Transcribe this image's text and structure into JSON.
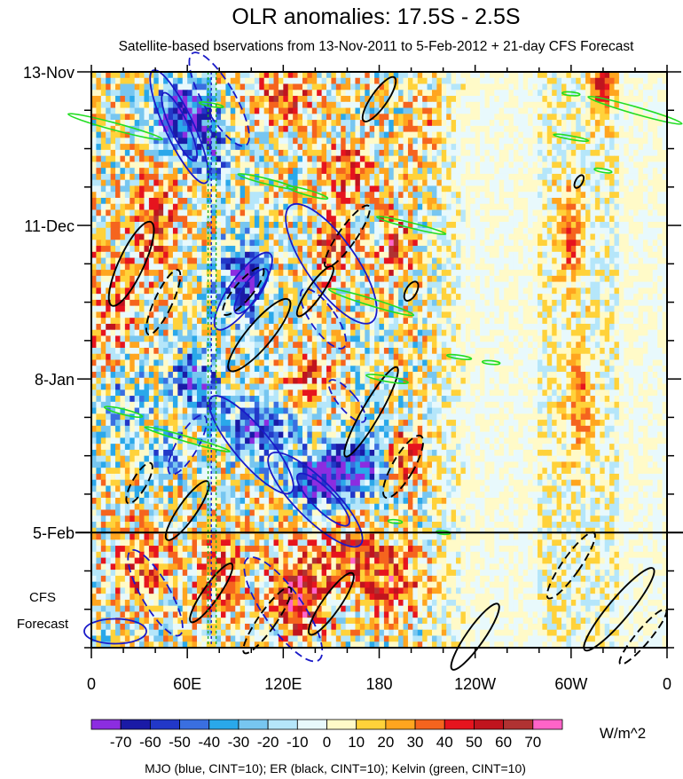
{
  "chart_data": {
    "type": "heatmap",
    "title": "OLR anomalies: 17.5S - 2.5S",
    "subtitle": "Satellite-based bservations from 13-Nov-2011 to 5-Feb-2012 + 21-day CFS Forecast",
    "xlabel": "",
    "ylabel": "",
    "x_ticks": [
      {
        "lon": 0,
        "label": "0"
      },
      {
        "lon": 60,
        "label": "60E"
      },
      {
        "lon": 120,
        "label": "120E"
      },
      {
        "lon": 180,
        "label": "180"
      },
      {
        "lon": 240,
        "label": "120W"
      },
      {
        "lon": 300,
        "label": "60W"
      },
      {
        "lon": 360,
        "label": "0"
      }
    ],
    "xlim": [
      0,
      360
    ],
    "y_ticks": [
      {
        "day": 0,
        "label": "13-Nov"
      },
      {
        "day": 28,
        "label": "11-Dec"
      },
      {
        "day": 56,
        "label": "8-Jan"
      },
      {
        "day": 84,
        "label": "5-Feb"
      }
    ],
    "ylim_days": [
      0,
      105
    ],
    "forecast_start_day": 84,
    "forecast_label_line1": "CFS",
    "forecast_label_line2": "Forecast",
    "colorbar": {
      "levels": [
        -70,
        -60,
        -50,
        -40,
        -30,
        -20,
        -10,
        0,
        10,
        20,
        30,
        40,
        50,
        60,
        70
      ],
      "level_labels": [
        "-70",
        "-60",
        "-50",
        "-40",
        "-30",
        "-20",
        "-10",
        "0",
        "10",
        "20",
        "30",
        "40",
        "50",
        "60",
        "70"
      ],
      "colors": [
        "#8c2de0",
        "#1a1aa6",
        "#2238c8",
        "#3a6fe0",
        "#2aa8ea",
        "#77c6f0",
        "#b5e6fa",
        "#e8f9fc",
        "#fffac8",
        "#ffd23a",
        "#ffa51f",
        "#f5641e",
        "#e6141e",
        "#c0141e",
        "#b03232",
        "#ff64c8"
      ],
      "units": "W/m^2"
    },
    "contour_legend": "MJO (blue, CINT=10); ER (black, CINT=10); Kelvin (green, CINT=10)",
    "series_colors": {
      "mjo": "#1a1ac8",
      "er": "#000000",
      "kelvin": "#22dd22"
    }
  }
}
